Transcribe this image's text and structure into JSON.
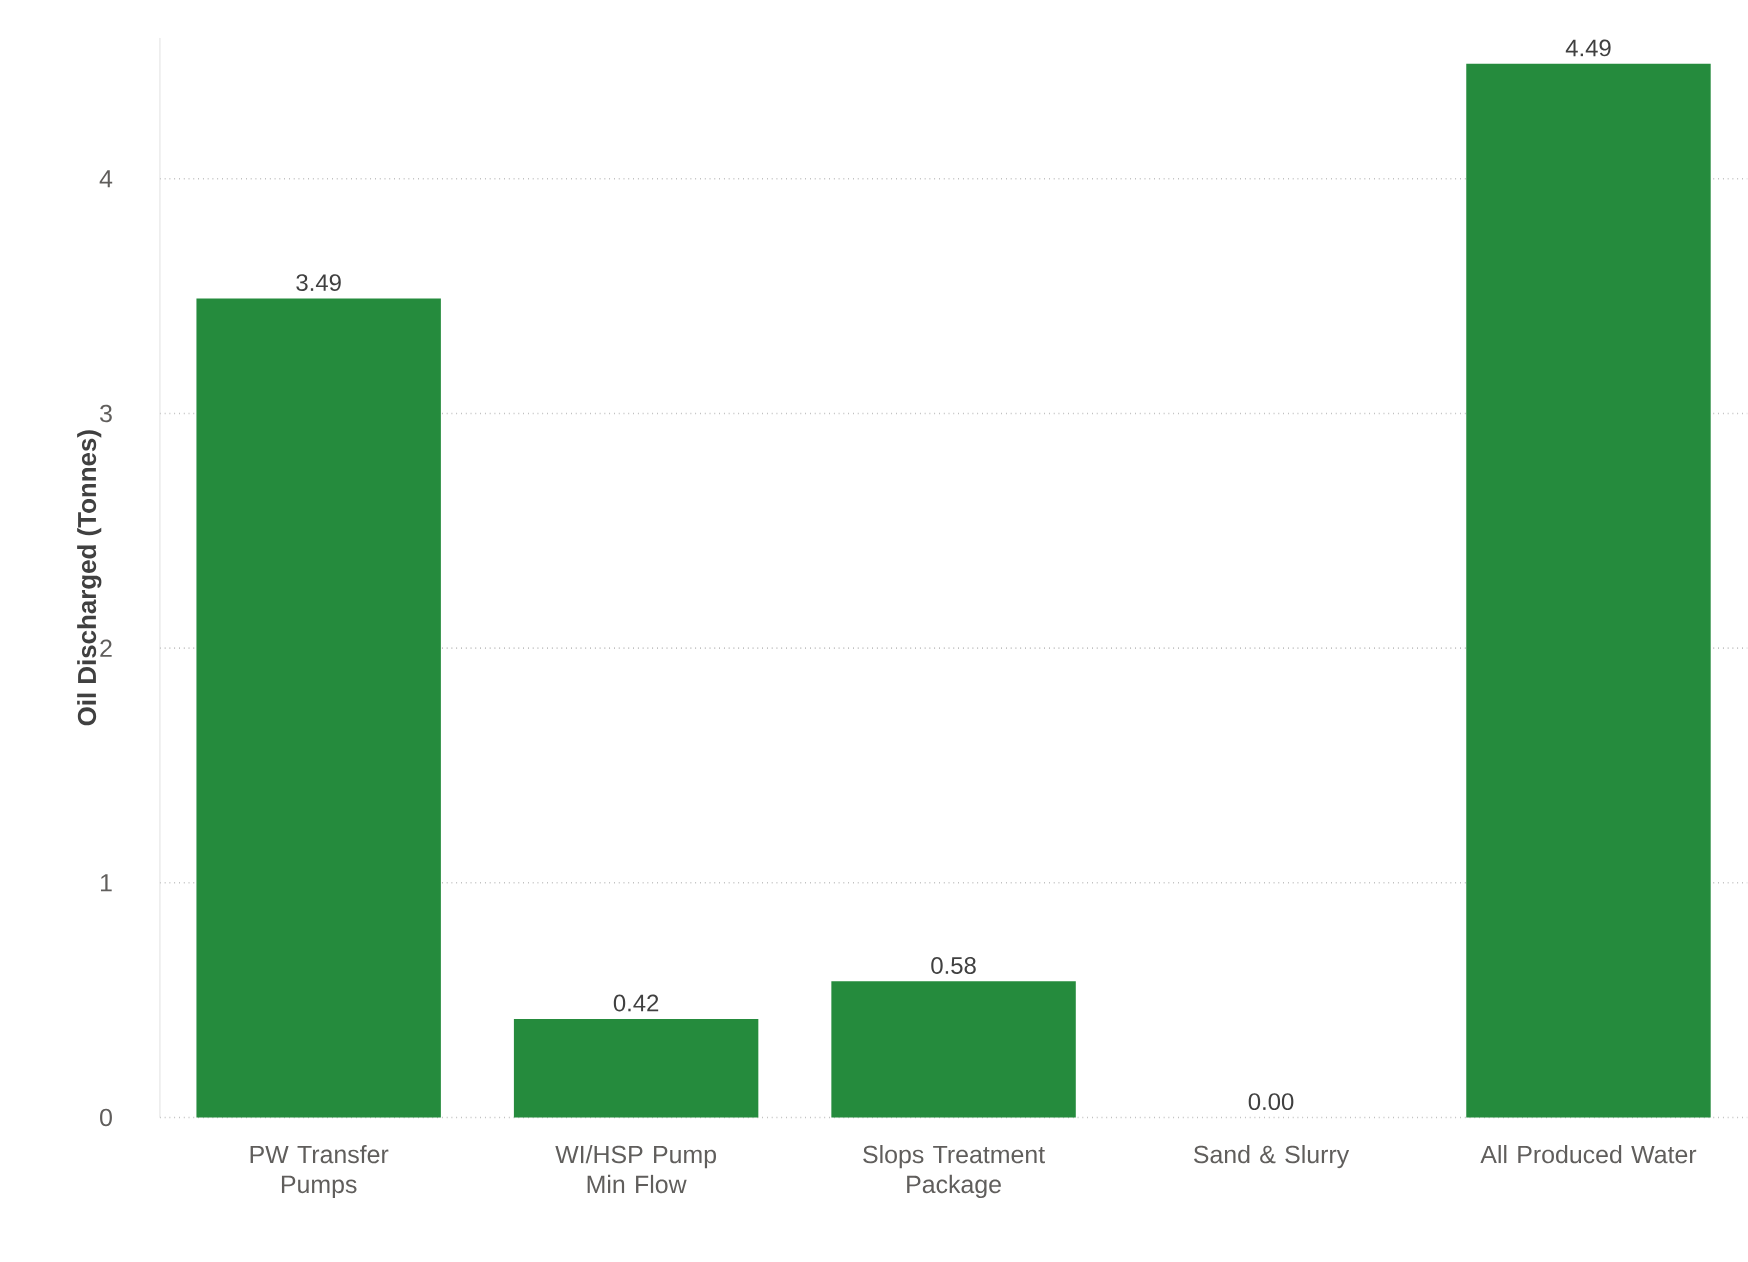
{
  "chart_data": {
    "type": "bar",
    "ylabel": "Oil Discharged (Tonnes)",
    "categories": [
      "PW Transfer Pumps",
      "WI/HSP Pump Min Flow",
      "Slops Treatment Package",
      "Sand & Slurry",
      "All Produced Water"
    ],
    "values": [
      3.49,
      0.42,
      0.58,
      0.0,
      4.49
    ],
    "value_labels": [
      "3.49",
      "0.42",
      "0.58",
      "0.00",
      "4.49"
    ],
    "color": "#258b3d",
    "ylim": [
      0,
      4.6
    ],
    "yticks": [
      0,
      1,
      2,
      3,
      4
    ],
    "grid": "y"
  }
}
